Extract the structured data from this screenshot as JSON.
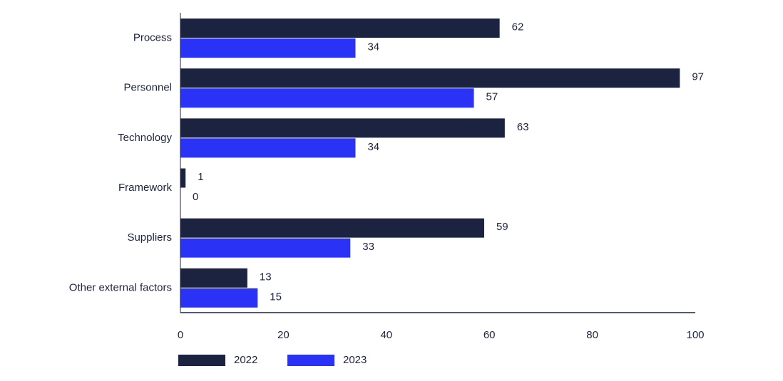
{
  "chart_data": {
    "type": "bar",
    "orientation": "horizontal",
    "categories": [
      "Process",
      "Personnel",
      "Technology",
      "Framework",
      "Suppliers",
      "Other external factors"
    ],
    "series": [
      {
        "name": "2022",
        "color": "#1c2340",
        "values": [
          62,
          97,
          63,
          1,
          59,
          13
        ]
      },
      {
        "name": "2023",
        "color": "#2a32f5",
        "values": [
          34,
          57,
          34,
          0,
          33,
          15
        ]
      }
    ],
    "xlim": [
      0,
      100
    ],
    "xticks": [
      0,
      20,
      40,
      60,
      80,
      100
    ],
    "grid": false,
    "legend": "bottom"
  }
}
